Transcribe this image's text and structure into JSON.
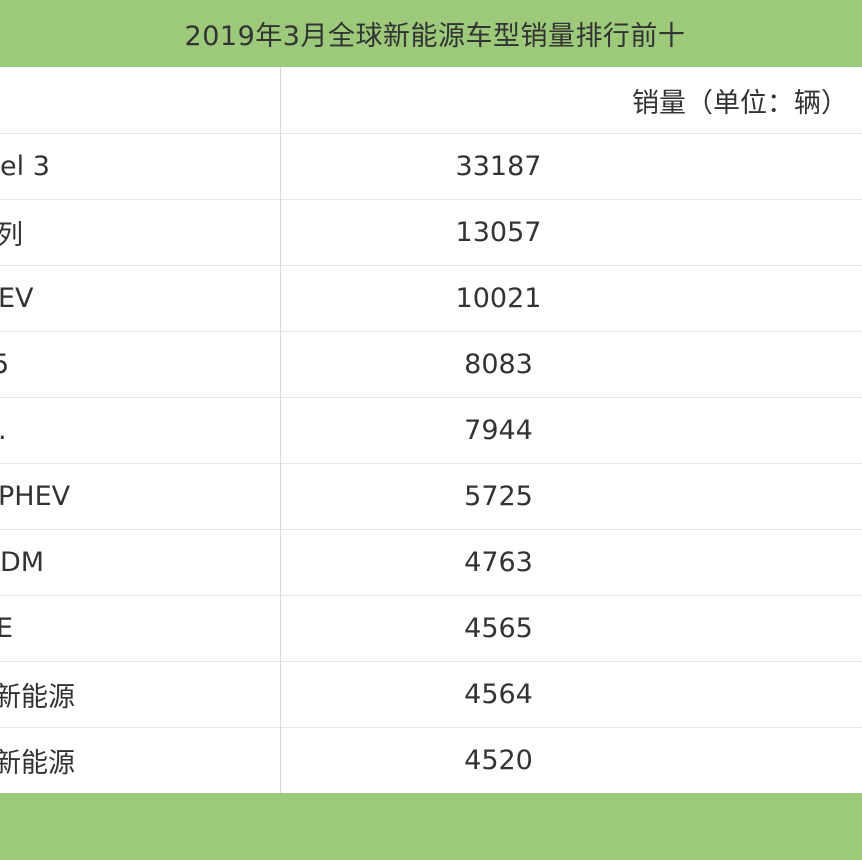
{
  "title": "2019年3月全球新能源车型销量排行前十",
  "header": {
    "name_label": "",
    "value_label": "销量（单位：辆）"
  },
  "rows": [
    {
      "name": "el 3",
      "value": "33187"
    },
    {
      "name": "列",
      "value": "13057"
    },
    {
      "name": "EV",
      "value": "10021"
    },
    {
      "name": "5",
      "value": "8083"
    },
    {
      "name": ".",
      "value": "7944"
    },
    {
      "name": "PHEV",
      "value": "5725"
    },
    {
      "name": "DM",
      "value": "4763"
    },
    {
      "name": "E",
      "value": "4565"
    },
    {
      "name": "新能源",
      "value": "4564"
    },
    {
      "name": "新能源",
      "value": "4520"
    }
  ],
  "colors": {
    "accent_green": "#9cc97a",
    "text": "#333333",
    "grid": "#e6e6e6"
  }
}
